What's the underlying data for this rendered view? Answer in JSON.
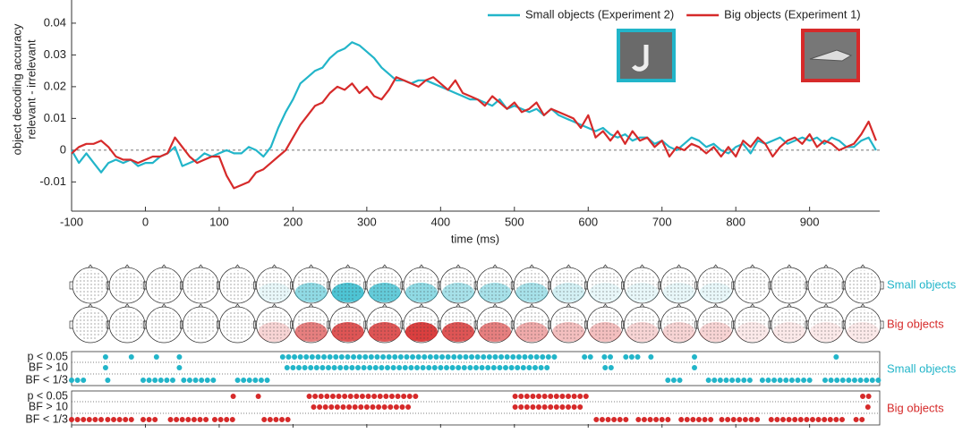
{
  "chart_data": {
    "type": "line",
    "ylabel": [
      "object decoding accuracy",
      "relevant - irrelevant"
    ],
    "xlabel": "time (ms)",
    "xlim": [
      -100,
      995
    ],
    "ylim": [
      -0.0192,
      0.0473
    ],
    "xticks": [
      -100,
      0,
      100,
      200,
      300,
      400,
      500,
      600,
      700,
      800,
      900
    ],
    "yticks": [
      -0.01,
      0,
      0.01,
      0.02,
      0.03,
      0.04
    ],
    "reference_line": 0,
    "x": [
      -100,
      -90,
      -80,
      -70,
      -60,
      -50,
      -40,
      -30,
      -20,
      -10,
      0,
      10,
      20,
      30,
      40,
      50,
      60,
      70,
      80,
      90,
      100,
      110,
      120,
      130,
      140,
      150,
      160,
      170,
      180,
      190,
      200,
      210,
      220,
      230,
      240,
      250,
      260,
      270,
      280,
      290,
      300,
      310,
      320,
      330,
      340,
      350,
      360,
      370,
      380,
      390,
      400,
      410,
      420,
      430,
      440,
      450,
      460,
      470,
      480,
      490,
      500,
      510,
      520,
      530,
      540,
      550,
      560,
      570,
      580,
      590,
      600,
      610,
      620,
      630,
      640,
      650,
      660,
      670,
      680,
      690,
      700,
      710,
      720,
      730,
      740,
      750,
      760,
      770,
      780,
      790,
      800,
      810,
      820,
      830,
      840,
      850,
      860,
      870,
      880,
      890,
      900,
      910,
      920,
      930,
      940,
      950,
      960,
      970,
      980,
      990
    ],
    "series": [
      {
        "name": "Small objects (Experiment 2)",
        "color": "#22b5c9",
        "values": [
          0,
          -0.004,
          -0.001,
          -0.004,
          -0.007,
          -0.004,
          -0.003,
          -0.004,
          -0.003,
          -0.005,
          -0.004,
          -0.004,
          -0.002,
          -0.001,
          0.001,
          -0.005,
          -0.004,
          -0.003,
          -0.001,
          -0.002,
          -0.001,
          0,
          -0.001,
          -0.001,
          0.001,
          0,
          -0.002,
          0.001,
          0.007,
          0.012,
          0.016,
          0.021,
          0.023,
          0.025,
          0.026,
          0.029,
          0.031,
          0.032,
          0.034,
          0.033,
          0.031,
          0.029,
          0.026,
          0.024,
          0.022,
          0.022,
          0.021,
          0.022,
          0.022,
          0.021,
          0.02,
          0.019,
          0.018,
          0.017,
          0.016,
          0.016,
          0.015,
          0.014,
          0.016,
          0.013,
          0.014,
          0.013,
          0.012,
          0.013,
          0.011,
          0.013,
          0.011,
          0.01,
          0.009,
          0.008,
          0.007,
          0.006,
          0.007,
          0.005,
          0.004,
          0.005,
          0.003,
          0.004,
          0.004,
          0.002,
          0.003,
          0.001,
          0,
          0.002,
          0.004,
          0.003,
          0.001,
          0.002,
          0,
          -0.001,
          0.001,
          0.002,
          -0.001,
          0.003,
          0.002,
          0.003,
          0.004,
          0.002,
          0.003,
          0.004,
          0.003,
          0.004,
          0.002,
          0.004,
          0.003,
          0.001,
          0.001,
          0.003,
          0.004,
          0
        ]
      },
      {
        "name": "Big objects (Experiment 1)",
        "color": "#d62a2a",
        "values": [
          -0.001,
          0.001,
          0.002,
          0.002,
          0.003,
          0.001,
          -0.002,
          -0.003,
          -0.003,
          -0.004,
          -0.003,
          -0.002,
          -0.002,
          -0.001,
          0.004,
          0.001,
          -0.002,
          -0.004,
          -0.003,
          -0.002,
          -0.002,
          -0.008,
          -0.012,
          -0.011,
          -0.01,
          -0.007,
          -0.006,
          -0.004,
          -0.002,
          0,
          0.004,
          0.008,
          0.011,
          0.014,
          0.015,
          0.018,
          0.02,
          0.019,
          0.021,
          0.018,
          0.02,
          0.017,
          0.016,
          0.019,
          0.023,
          0.022,
          0.021,
          0.02,
          0.022,
          0.023,
          0.021,
          0.019,
          0.022,
          0.018,
          0.017,
          0.016,
          0.014,
          0.017,
          0.015,
          0.013,
          0.015,
          0.012,
          0.013,
          0.015,
          0.011,
          0.013,
          0.012,
          0.011,
          0.01,
          0.007,
          0.011,
          0.004,
          0.006,
          0.003,
          0.006,
          0.002,
          0.006,
          0.003,
          0.004,
          0.001,
          0.003,
          -0.002,
          0.001,
          0,
          0.002,
          0.001,
          -0.001,
          0.001,
          -0.002,
          0.001,
          -0.002,
          0.003,
          0.001,
          0.004,
          0.002,
          -0.002,
          0.001,
          0.003,
          0.004,
          0.002,
          0.005,
          0.001,
          0.003,
          0.002,
          0,
          0.001,
          0.002,
          0.005,
          0.009,
          0.003
        ]
      }
    ],
    "topomaps": [
      {
        "name": "Small objects",
        "color": "#22b5c9",
        "intensity": [
          0,
          0,
          0,
          0,
          0,
          0.1,
          0.5,
          0.8,
          0.7,
          0.5,
          0.4,
          0.4,
          0.4,
          0.2,
          0.1,
          0.1,
          0.1,
          0.1,
          0,
          0,
          0,
          0
        ]
      },
      {
        "name": "Big objects",
        "color": "#d62a2a",
        "intensity": [
          0,
          0,
          0,
          0,
          0,
          0.2,
          0.6,
          0.8,
          0.8,
          0.9,
          0.8,
          0.6,
          0.4,
          0.3,
          0.3,
          0.2,
          0.2,
          0.2,
          0.1,
          0.1,
          0.1,
          0.1
        ]
      }
    ],
    "significance": [
      {
        "name": "Small objects",
        "color": "#22b5c9",
        "rows": [
          {
            "label": "p < 0.05",
            "intervals": [
              [
                -54,
                -54
              ],
              [
                -19,
                -11
              ],
              [
                15,
                15
              ],
              [
                46,
                46
              ],
              [
                186,
                559
              ],
              [
                595,
                607
              ],
              [
                622,
                635
              ],
              [
                651,
                672
              ],
              [
                685,
                685
              ],
              [
                744,
                744
              ],
              [
                936,
                936
              ]
            ]
          },
          {
            "label": "BF > 10",
            "intervals": [
              [
                -54,
                -54
              ],
              [
                46,
                46
              ],
              [
                192,
                550
              ],
              [
                623,
                635
              ],
              [
                744,
                744
              ]
            ]
          },
          {
            "label": "BF < 1/3",
            "intervals": [
              [
                -100,
                -82
              ],
              [
                -51,
                -51
              ],
              [
                -3,
                43
              ],
              [
                52,
                100
              ],
              [
                125,
                167
              ],
              [
                708,
                726
              ],
              [
                763,
                823
              ],
              [
                836,
                902
              ],
              [
                921,
                994
              ]
            ]
          }
        ]
      },
      {
        "name": "Big objects",
        "color": "#d62a2a",
        "rows": [
          {
            "label": "p < 0.05",
            "intervals": [
              [
                119,
                119
              ],
              [
                153,
                153
              ],
              [
                222,
                368
              ],
              [
                501,
                599
              ],
              [
                972,
                987
              ]
            ]
          },
          {
            "label": "BF > 10",
            "intervals": [
              [
                228,
                364
              ],
              [
                501,
                593
              ],
              [
                979,
                979
              ]
            ]
          },
          {
            "label": "BF < 1/3",
            "intervals": [
              [
                -100,
                -57
              ],
              [
                -51,
                -13
              ],
              [
                -3,
                15
              ],
              [
                34,
                88
              ],
              [
                94,
                121
              ],
              [
                161,
                198
              ],
              [
                611,
                653
              ],
              [
                668,
                714
              ],
              [
                726,
                769
              ],
              [
                781,
                836
              ],
              [
                848,
                951
              ],
              [
                963,
                975
              ]
            ]
          }
        ]
      }
    ]
  }
}
